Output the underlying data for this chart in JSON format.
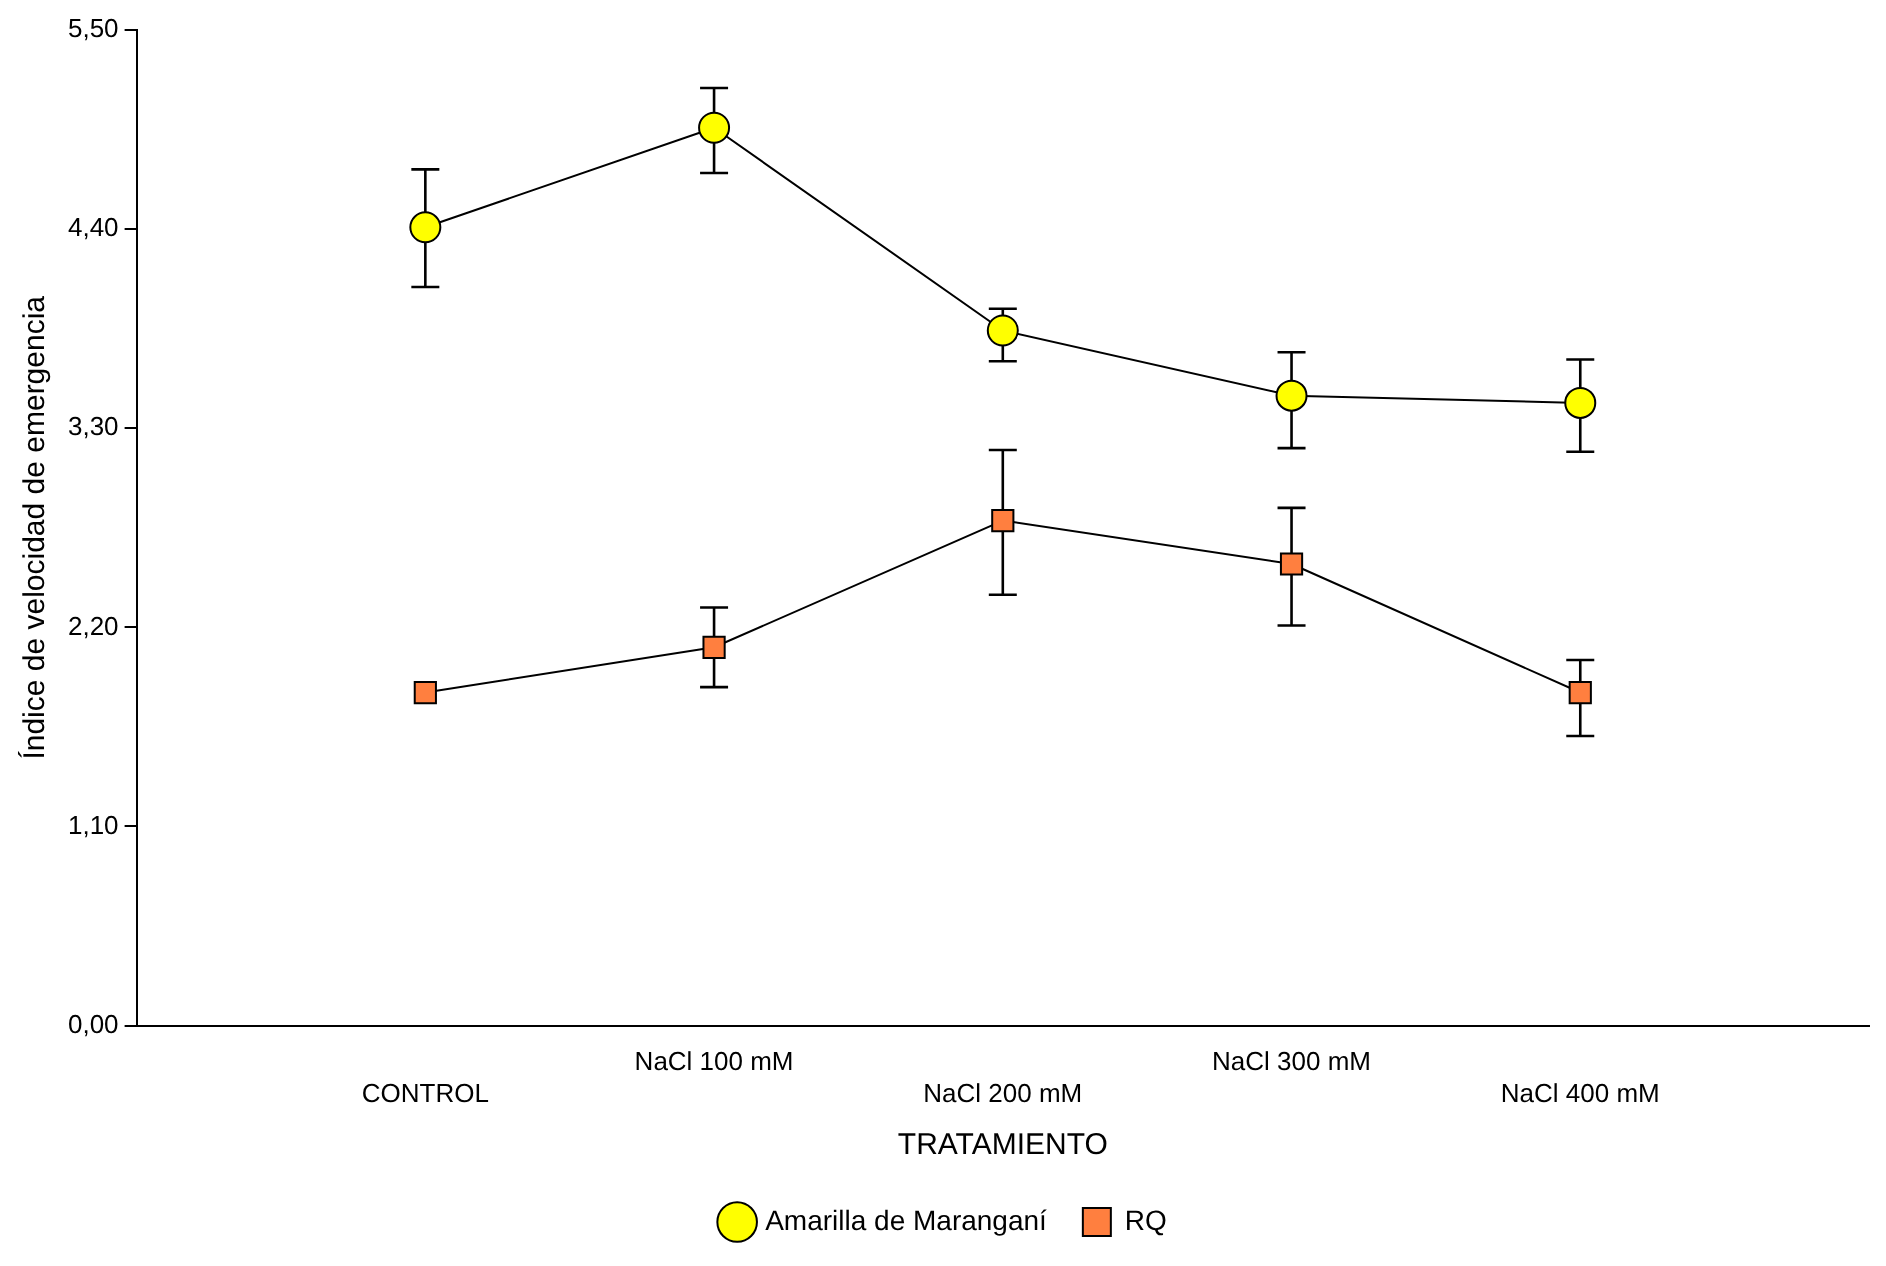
{
  "chart_data": {
    "type": "line",
    "xlabel": "TRATAMIENTO",
    "ylabel": "Índice de velocidad de emergencia",
    "categories": [
      "CONTROL",
      "NaCl 100 mM",
      "NaCl 200 mM",
      "NaCl 300 mM",
      "NaCl 400 mM"
    ],
    "series": [
      {
        "name": "Amarilla de Maranganí",
        "color": "#ffff00",
        "marker": "circle",
        "values": [
          4.41,
          4.96,
          3.84,
          3.48,
          3.44
        ],
        "errors": [
          [
            4.08,
            4.73
          ],
          [
            4.71,
            5.18
          ],
          [
            3.67,
            3.96
          ],
          [
            3.19,
            3.72
          ],
          [
            3.17,
            3.68
          ]
        ]
      },
      {
        "name": "RQ",
        "color": "#ff7f3f",
        "marker": "square",
        "values": [
          1.84,
          2.09,
          2.79,
          2.55,
          1.84
        ],
        "errors": [
          null,
          [
            1.87,
            2.31
          ],
          [
            2.38,
            3.18
          ],
          [
            2.21,
            2.86
          ],
          [
            1.6,
            2.02
          ]
        ]
      }
    ],
    "ylim": [
      0,
      5.5
    ],
    "yticks": [
      {
        "value": 0,
        "label": "0,00"
      },
      {
        "value": 1.1,
        "label": "1,10"
      },
      {
        "value": 2.2,
        "label": "2,20"
      },
      {
        "value": 3.3,
        "label": "3,30"
      },
      {
        "value": 4.4,
        "label": "4,40"
      },
      {
        "value": 5.5,
        "label": "5,50"
      }
    ],
    "grid": false,
    "legend": "bottom",
    "line_style": "solid"
  }
}
